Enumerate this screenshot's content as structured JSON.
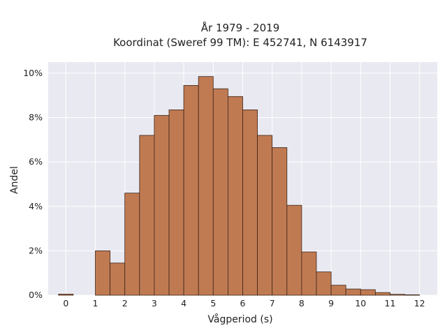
{
  "chart_data": {
    "type": "bar",
    "title_line1": "År 1979 - 2019",
    "title_line2": "Koordinat (Sweref 99 TM): E 452741, N 6143917",
    "xlabel": "Vågperiod (s)",
    "ylabel": "Andel",
    "xlim": [
      -0.6,
      12.6
    ],
    "ylim": [
      0,
      10.5
    ],
    "xticks": [
      0,
      1,
      2,
      3,
      4,
      5,
      6,
      7,
      8,
      9,
      10,
      11,
      12
    ],
    "xtick_labels": [
      "0",
      "1",
      "2",
      "3",
      "4",
      "5",
      "6",
      "7",
      "8",
      "9",
      "10",
      "11",
      "12"
    ],
    "yticks": [
      0,
      2,
      4,
      6,
      8,
      10
    ],
    "ytick_labels": [
      "0%",
      "2%",
      "4%",
      "6%",
      "8%",
      "10%"
    ],
    "grid": true,
    "bin_width": 0.5,
    "bins": [
      {
        "x0": -0.25,
        "x1": 0.25,
        "value": 0.05
      },
      {
        "x0": 1.0,
        "x1": 1.5,
        "value": 2.0
      },
      {
        "x0": 1.5,
        "x1": 2.0,
        "value": 1.45
      },
      {
        "x0": 2.0,
        "x1": 2.5,
        "value": 4.6
      },
      {
        "x0": 2.5,
        "x1": 3.0,
        "value": 7.2
      },
      {
        "x0": 3.0,
        "x1": 3.5,
        "value": 8.1
      },
      {
        "x0": 3.5,
        "x1": 4.0,
        "value": 8.35
      },
      {
        "x0": 4.0,
        "x1": 4.5,
        "value": 9.45
      },
      {
        "x0": 4.5,
        "x1": 5.0,
        "value": 9.85
      },
      {
        "x0": 5.0,
        "x1": 5.5,
        "value": 9.3
      },
      {
        "x0": 5.5,
        "x1": 6.0,
        "value": 8.95
      },
      {
        "x0": 6.0,
        "x1": 6.5,
        "value": 8.35
      },
      {
        "x0": 6.5,
        "x1": 7.0,
        "value": 7.2
      },
      {
        "x0": 7.0,
        "x1": 7.5,
        "value": 6.65
      },
      {
        "x0": 7.5,
        "x1": 8.0,
        "value": 4.05
      },
      {
        "x0": 8.0,
        "x1": 8.5,
        "value": 1.95
      },
      {
        "x0": 8.5,
        "x1": 9.0,
        "value": 1.05
      },
      {
        "x0": 9.0,
        "x1": 9.5,
        "value": 0.45
      },
      {
        "x0": 9.5,
        "x1": 10.0,
        "value": 0.28
      },
      {
        "x0": 10.0,
        "x1": 10.5,
        "value": 0.25
      },
      {
        "x0": 10.5,
        "x1": 11.0,
        "value": 0.12
      },
      {
        "x0": 11.0,
        "x1": 11.5,
        "value": 0.04
      },
      {
        "x0": 11.5,
        "x1": 12.0,
        "value": 0.02
      }
    ],
    "colors": {
      "bar_fill": "#c07a52",
      "bar_edge": "#3a2418",
      "plot_bg": "#e9e9f1",
      "grid": "#ffffff"
    }
  }
}
